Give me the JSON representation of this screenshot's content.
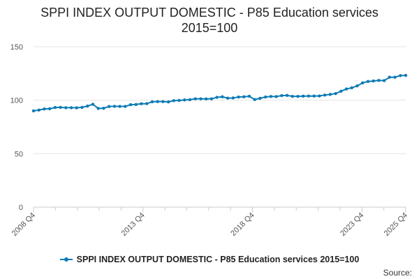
{
  "chart_data": {
    "type": "line",
    "title_lines": [
      "SPPI INDEX OUTPUT DOMESTIC - P85 Education services",
      "2015=100"
    ],
    "x_start": "2008 Q4",
    "x_end": "2025 Q4",
    "x_tick_labels": [
      "2008 Q4",
      "2013 Q4",
      "2018 Q4",
      "2023 Q4",
      "2025 Q4"
    ],
    "ylim": [
      0,
      150
    ],
    "yticks": [
      0,
      50,
      100,
      150
    ],
    "grid": "horizontal",
    "legend_position": "bottom-center",
    "series": [
      {
        "name": "SPPI INDEX OUTPUT DOMESTIC - P85 Education services 2015=100",
        "color": "#0d7bb6",
        "values": [
          90.0,
          90.8,
          91.8,
          92.0,
          93.2,
          93.3,
          93.0,
          93.0,
          92.9,
          93.3,
          94.5,
          96.2,
          92.3,
          92.5,
          94.1,
          94.3,
          94.2,
          94.2,
          95.8,
          96.0,
          96.7,
          96.8,
          98.5,
          98.7,
          98.7,
          98.4,
          99.6,
          99.8,
          100.2,
          100.5,
          101.3,
          101.3,
          101.2,
          101.3,
          102.7,
          103.2,
          101.9,
          102.1,
          103.0,
          103.2,
          103.7,
          100.6,
          101.8,
          103.0,
          103.5,
          103.4,
          104.3,
          104.5,
          103.6,
          103.6,
          103.8,
          103.9,
          103.9,
          104.0,
          104.8,
          105.4,
          106.2,
          108.4,
          110.5,
          111.6,
          113.4,
          116.2,
          117.5,
          118.0,
          118.5,
          118.3,
          121.5,
          121.5,
          123.0,
          123.2
        ]
      }
    ]
  },
  "source_label": "Source:"
}
